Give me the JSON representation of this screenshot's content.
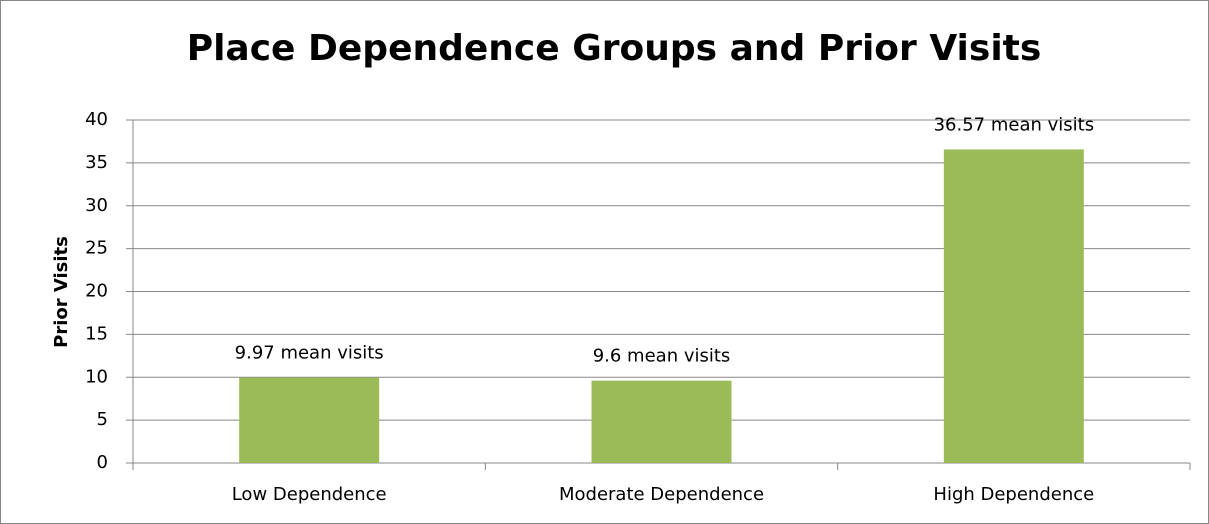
{
  "chart_data": {
    "type": "bar",
    "title": "Place Dependence Groups and Prior Visits",
    "y_label": "Prior Visits",
    "categories": [
      "Low Dependence",
      "Moderate Dependence",
      "High Dependence"
    ],
    "values": [
      9.97,
      9.6,
      36.57
    ],
    "value_labels": [
      "9.97 mean visits",
      "9.6 mean visits",
      "36.57 mean visits"
    ],
    "color": "#9bbb59",
    "ylim": [
      0,
      40
    ],
    "yticks": [
      0,
      5,
      10,
      15,
      20,
      25,
      30,
      35,
      40
    ],
    "grid": true
  }
}
